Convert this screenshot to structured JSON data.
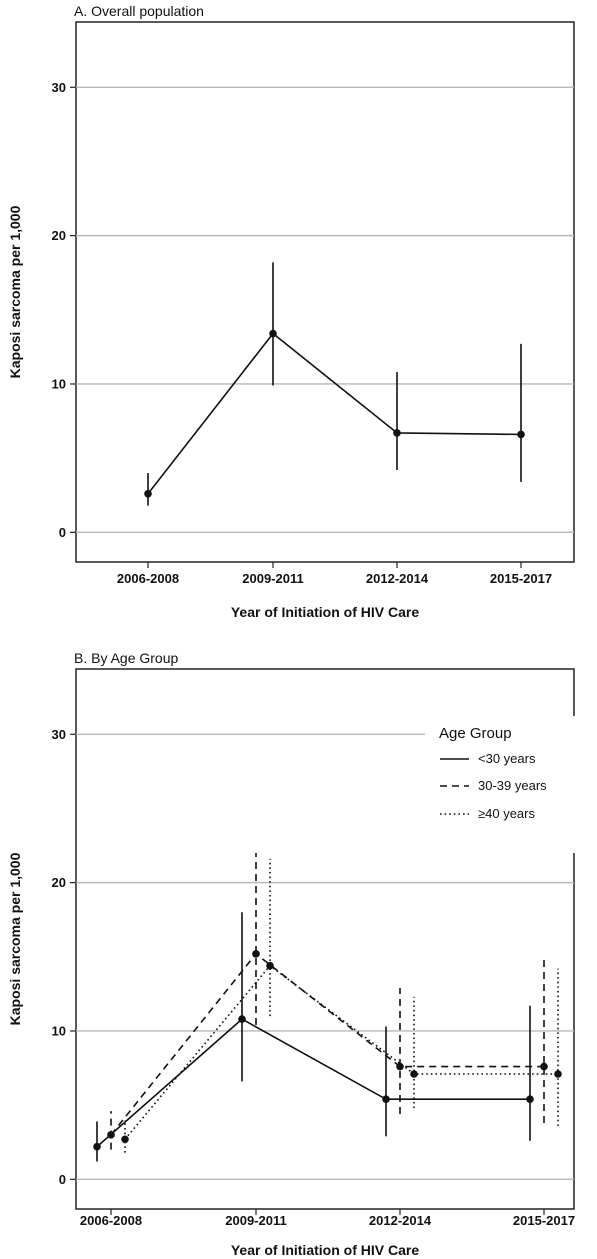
{
  "chart_data": [
    {
      "type": "line",
      "title": "A. Overall population",
      "xlabel": "Year of Initiation of HIV Care",
      "ylabel": "Kaposi sarcoma per 1,000",
      "categories": [
        "2006-2008",
        "2009-2011",
        "2012-2014",
        "2015-2017"
      ],
      "yticks": [
        0,
        10,
        20,
        30
      ],
      "ylim": [
        -2,
        34.4
      ],
      "grid": true,
      "series": [
        {
          "values": [
            2.6,
            13.4,
            6.7,
            6.6
          ],
          "lower": [
            1.8,
            9.9,
            4.2,
            3.4
          ],
          "upper": [
            4.0,
            18.2,
            10.8,
            12.7
          ],
          "style": "solid",
          "color": "#111111"
        }
      ]
    },
    {
      "type": "line",
      "title": "B. By Age Group",
      "xlabel": "Year of Initiation of HIV Care",
      "ylabel": "Kaposi sarcoma per 1,000",
      "categories": [
        "2006-2008",
        "2009-2011",
        "2012-2014",
        "2015-2017"
      ],
      "yticks": [
        0,
        10,
        20,
        30
      ],
      "ylim": [
        -2,
        34.4
      ],
      "grid": true,
      "legend": {
        "title": "Age Group",
        "position": "top-right"
      },
      "series": [
        {
          "name": "<30 years",
          "values": [
            2.2,
            10.8,
            5.4,
            5.4
          ],
          "lower": [
            1.2,
            6.6,
            2.9,
            2.6
          ],
          "upper": [
            3.9,
            18.0,
            10.3,
            11.7
          ],
          "style": "solid",
          "color": "#111111"
        },
        {
          "name": "30-39 years",
          "values": [
            3.0,
            15.2,
            7.6,
            7.6
          ],
          "lower": [
            2.0,
            10.4,
            4.4,
            3.8
          ],
          "upper": [
            4.6,
            22.0,
            12.9,
            15.1
          ],
          "style": "dashed",
          "color": "#111111"
        },
        {
          "name": "≥40 years",
          "values": [
            2.7,
            14.4,
            7.1,
            7.1
          ],
          "lower": [
            1.8,
            11.0,
            4.8,
            3.6
          ],
          "upper": [
            4.0,
            21.6,
            12.3,
            14.2
          ],
          "style": "dotted",
          "color": "#111111"
        }
      ]
    }
  ]
}
